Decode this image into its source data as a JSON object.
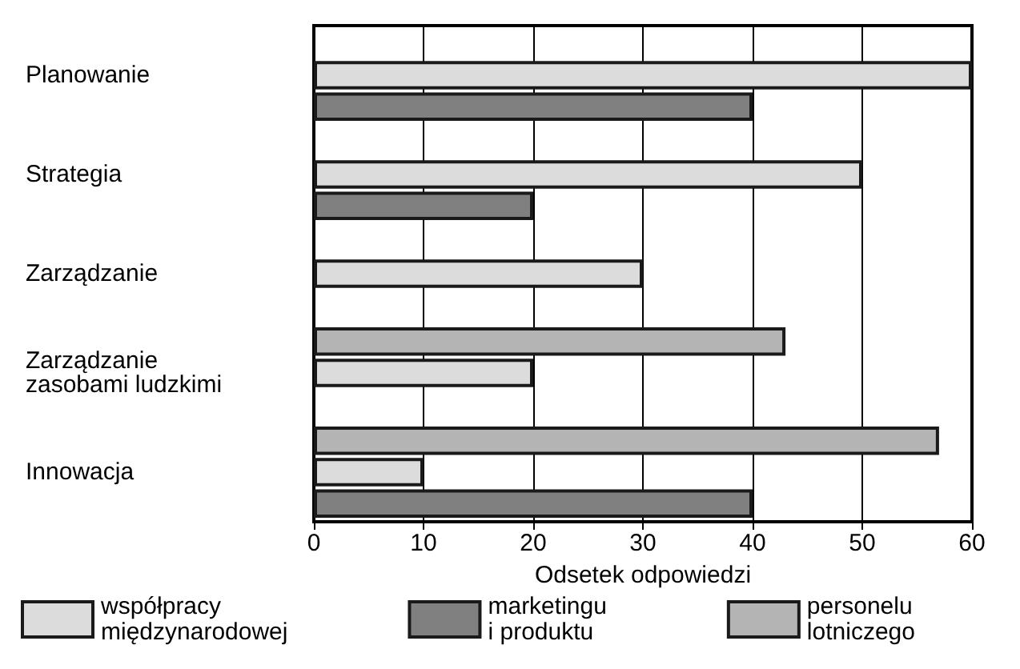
{
  "chart_data": {
    "type": "bar",
    "orientation": "horizontal",
    "xlabel": "Odsetek odpowiedzi",
    "categories": [
      "Planowanie",
      "Strategia",
      "Zarządzanie",
      "Zarządzanie\nzasobami ludzkimi",
      "Innowacja"
    ],
    "series": [
      {
        "name": "współpracy\nmiędzynarodowej",
        "color": "#dcdcdc",
        "values": [
          60,
          50,
          30,
          20,
          10
        ]
      },
      {
        "name": "marketingu\ni produktu",
        "color": "#808080",
        "values": [
          40,
          20,
          null,
          null,
          40
        ]
      },
      {
        "name": "personelu\nlotniczego",
        "color": "#b4b4b4",
        "values": [
          null,
          null,
          null,
          43,
          57
        ]
      }
    ],
    "xlim": [
      0,
      60
    ],
    "xticks": [
      0,
      10,
      20,
      30,
      40,
      50,
      60
    ],
    "grid": "x",
    "legend": "bottom"
  }
}
